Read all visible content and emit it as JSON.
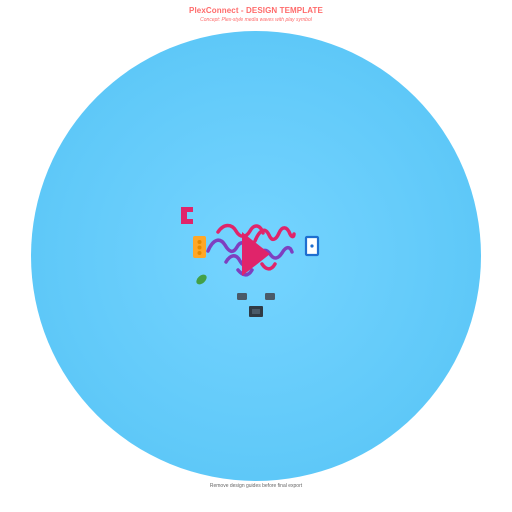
{
  "header": {
    "title": "PlexConnect - DESIGN TEMPLATE",
    "subtitle": "Concept: Plex-style media waves with play symbol"
  },
  "footer": {
    "note": "Remove design guides before final export"
  },
  "colors": {
    "title": "#ff6b6b",
    "subtitle": "#ff6b6b",
    "footer": "#666666",
    "circle_center": "#75d4ff",
    "circle_edge": "#5ec8f8",
    "magenta": "#e0246a",
    "purple": "#7e3fc0",
    "orange": "#ffa726",
    "orange_dark": "#e68a00",
    "blue": "#1e6fd0",
    "green": "#43a047",
    "slate": "#4a5a68",
    "dark": "#2f3a44"
  },
  "icons": [
    "bracket-icon",
    "traffic-light-icon",
    "media-waves-icon",
    "play-icon",
    "phone-icon",
    "bean-icon",
    "left-tile-icon",
    "right-tile-icon",
    "chip-icon"
  ]
}
